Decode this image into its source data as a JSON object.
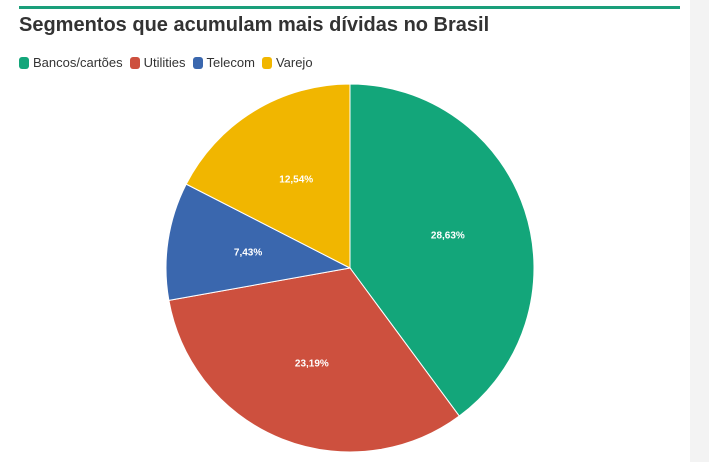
{
  "chart_data": {
    "type": "pie",
    "title": "Segmentos que acumulam mais dívidas no Brasil",
    "legend_position": "top-left",
    "slices": [
      {
        "name": "Bancos/cartões",
        "value": 28.63,
        "label": "28,63%",
        "color": "#13a67a"
      },
      {
        "name": "Utilities",
        "value": 23.19,
        "label": "23,19%",
        "color": "#cd503e"
      },
      {
        "name": "Telecom",
        "value": 7.43,
        "label": "7,43%",
        "color": "#3a67ae"
      },
      {
        "name": "Varejo",
        "value": 12.54,
        "label": "12,54%",
        "color": "#f1b600"
      }
    ]
  },
  "colors": {
    "accent": "#1a9f7a"
  }
}
